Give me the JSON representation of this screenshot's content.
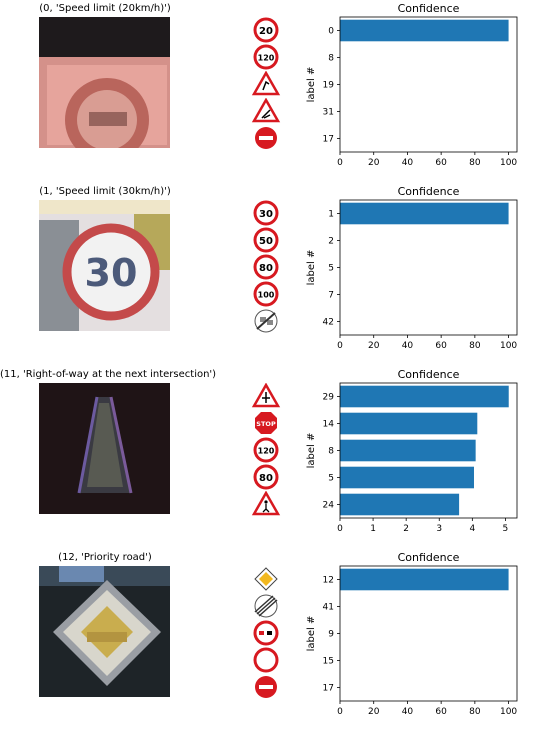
{
  "panels": [
    {
      "title": "(0, 'Speed limit (20km/h)')",
      "photo": "speed-limit-20-sign-photo",
      "candidates": [
        "speed-limit-20",
        "speed-limit-120",
        "dangerous-curve-right",
        "road-narrows-right",
        "no-entry"
      ]
    },
    {
      "title": "(1, 'Speed limit (30km/h)')",
      "photo": "speed-limit-30-sign-photo",
      "candidates": [
        "speed-limit-30",
        "speed-limit-50",
        "speed-limit-80",
        "speed-limit-100",
        "end-of-no-passing-trucks"
      ]
    },
    {
      "title": "(11, 'Right-of-way at the next intersection')",
      "photo": "dark-triangle-sign-photo",
      "candidates": [
        "right-of-way-next-intersection",
        "stop",
        "speed-limit-120",
        "speed-limit-80",
        "pedestrians"
      ]
    },
    {
      "title": "(12, 'Priority road')",
      "photo": "priority-road-sign-photo",
      "candidates": [
        "priority-road",
        "end-of-speed-and-passing-limits",
        "no-passing",
        "no-vehicles",
        "no-entry"
      ]
    }
  ],
  "chart_data": [
    {
      "type": "bar",
      "orientation": "horizontal",
      "title": "Confidence",
      "ylabel": "label #",
      "categories": [
        "0",
        "8",
        "19",
        "31",
        "17"
      ],
      "values": [
        100,
        0,
        0,
        0,
        0
      ],
      "xlim": [
        0,
        105
      ],
      "xticks": [
        "0",
        "20",
        "40",
        "60",
        "80",
        "100"
      ],
      "xtick_values": [
        0,
        20,
        40,
        60,
        80,
        100
      ],
      "color": "#1f77b4"
    },
    {
      "type": "bar",
      "orientation": "horizontal",
      "title": "Confidence",
      "ylabel": "label #",
      "categories": [
        "1",
        "2",
        "5",
        "7",
        "42"
      ],
      "values": [
        100,
        0,
        0,
        0,
        0
      ],
      "xlim": [
        0,
        105
      ],
      "xticks": [
        "0",
        "20",
        "40",
        "60",
        "80",
        "100"
      ],
      "xtick_values": [
        0,
        20,
        40,
        60,
        80,
        100
      ],
      "color": "#1f77b4"
    },
    {
      "type": "bar",
      "orientation": "horizontal",
      "title": "Confidence",
      "ylabel": "label #",
      "categories": [
        "29",
        "14",
        "8",
        "5",
        "24"
      ],
      "values": [
        5.1,
        4.15,
        4.1,
        4.05,
        3.6
      ],
      "xlim": [
        0,
        5.35
      ],
      "xticks": [
        "0",
        "1",
        "2",
        "3",
        "4",
        "5"
      ],
      "xtick_values": [
        0,
        1,
        2,
        3,
        4,
        5
      ],
      "color": "#1f77b4"
    },
    {
      "type": "bar",
      "orientation": "horizontal",
      "title": "Confidence",
      "ylabel": "label #",
      "categories": [
        "12",
        "41",
        "9",
        "15",
        "17"
      ],
      "values": [
        100,
        0,
        0,
        0,
        0
      ],
      "xlim": [
        0,
        105
      ],
      "xticks": [
        "0",
        "20",
        "40",
        "60",
        "80",
        "100"
      ],
      "xtick_values": [
        0,
        20,
        40,
        60,
        80,
        100
      ],
      "color": "#1f77b4"
    }
  ],
  "sign_text": {
    "speed-limit-20": "20",
    "speed-limit-120": "120",
    "speed-limit-30": "30",
    "speed-limit-50": "50",
    "speed-limit-80": "80",
    "speed-limit-100": "100",
    "stop": "STOP",
    "photo_30": "30"
  }
}
